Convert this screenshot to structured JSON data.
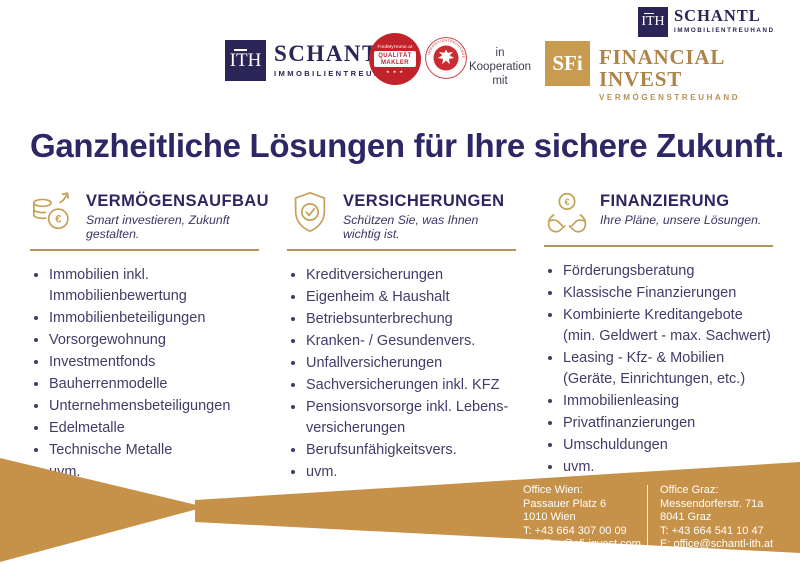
{
  "brand": {
    "schantl": {
      "mark": "ITH",
      "name": "SCHANTL",
      "subtitle": "IMMOBILIENTREUHAND"
    },
    "badge_quality": {
      "brand": "FindMyHome.at",
      "line1": "QUALITÄT",
      "line2": "MAKLER",
      "stars": "★ ★ ★"
    },
    "badge_seal": {
      "text": "IMMOBILIENTREUHÄNDER"
    },
    "cooperation": "in\nKooperation\nmit",
    "sfi": {
      "mark": "SFi",
      "name": "FINANCIAL INVEST",
      "subtitle": "VERMÖGENSTREUHAND"
    }
  },
  "headline": "Ganzheitliche Lösungen für Ihre sichere Zukunft.",
  "columns": [
    {
      "icon": "coins-euro-growth-icon",
      "title": "VERMÖGENSAUFBAU",
      "subtitle": "Smart investieren, Zukunft gestalten.",
      "items": [
        "Immobilien inkl.\nImmobilienbewertung",
        "Immobilienbeteiligungen",
        "Vorsorgewohnung",
        "Investmentfonds",
        "Bauherrenmodelle",
        "Unternehmensbeteiligungen",
        "Edelmetalle",
        "Technische Metalle",
        "uvm."
      ]
    },
    {
      "icon": "shield-check-icon",
      "title": "VERSICHERUNGEN",
      "subtitle": "Schützen Sie, was Ihnen wichtig ist.",
      "items": [
        "Kreditversicherungen",
        "Eigenheim & Haushalt",
        "Betriebsunterbrechung",
        "Kranken- / Gesundenvers.",
        "Unfallversicherungen",
        "Sachversicherungen inkl. KFZ",
        "Pensionsvorsorge inkl. Lebens-\nversicherungen",
        "Berufsunfähigkeitsvers.",
        "uvm."
      ]
    },
    {
      "icon": "hands-euro-icon",
      "title": "FINANZIERUNG",
      "subtitle": "Ihre Pläne, unsere Lösungen.",
      "items": [
        "Förderungsberatung",
        "Klassische Finanzierungen",
        "Kombinierte Kreditangebote\n(min. Geldwert - max. Sachwert)",
        "Leasing - Kfz- & Mobilien\n(Geräte, Einrichtungen, etc.)",
        "Immobilienleasing",
        "Privatfinanzierungen",
        "Umschuldungen",
        "uvm."
      ]
    }
  ],
  "footer": {
    "offices": [
      {
        "title": "Office Wien:",
        "lines": [
          "Passauer Platz 6",
          "1010 Wien",
          "T: +43 664 307 00 09",
          "E: office@sfi-invest.com"
        ]
      },
      {
        "title": "Office Graz:",
        "lines": [
          "Messendorferstr. 71a",
          "8041 Graz",
          "T: +43 664 541 10 47",
          "E: office@schantl-ith.at"
        ]
      }
    ]
  },
  "colors": {
    "navy": "#2b2456",
    "headline_navy": "#2e2766",
    "gold": "#c69148",
    "gold_icon": "#c6a258",
    "gold_rule": "#b4965c",
    "badge_red": "#c2232a",
    "white": "#ffffff"
  }
}
